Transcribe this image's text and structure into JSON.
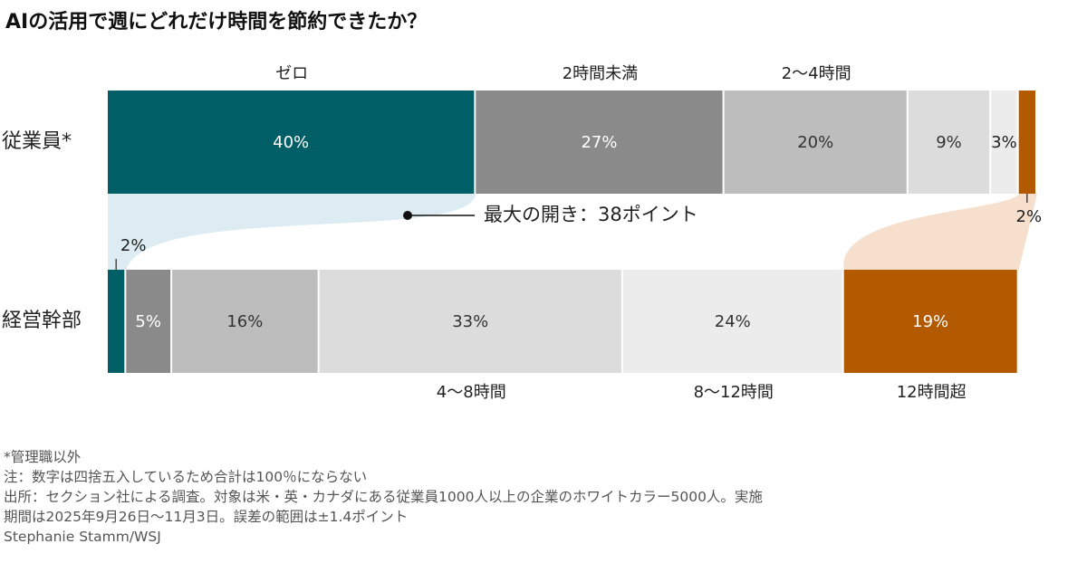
{
  "title": "AIの活用で週にどれだけ時間を節約できたか？",
  "chart_data": {
    "type": "bar",
    "stacked": true,
    "orientation": "horizontal",
    "categories": [
      "ゼロ",
      "2時間未満",
      "2～4時間",
      "4～8時間",
      "8～12時間",
      "12時間超"
    ],
    "colors": [
      "#005f66",
      "#8a8a8a",
      "#bdbdbd",
      "#dcdcdc",
      "#ececec",
      "#b35900"
    ],
    "series": [
      {
        "name": "従業員*",
        "values": [
          40,
          27,
          20,
          9,
          3,
          2
        ],
        "labels": [
          "40%",
          "27%",
          "20%",
          "9%",
          "3%",
          "2%"
        ]
      },
      {
        "name": "経営幹部",
        "values": [
          2,
          5,
          16,
          33,
          24,
          19
        ],
        "labels": [
          "2%",
          "5%",
          "16%",
          "33%",
          "24%",
          "19%"
        ]
      }
    ],
    "annotation": "最大の開き：38ポイント",
    "xlim": [
      0,
      101
    ]
  },
  "notes": {
    "asterisk": "*管理職以外",
    "note": "注：数字は四捨五入しているため合計は100％にならない",
    "source_1": "出所：セクション社による調査。対象は米・英・カナダにある従業員1000人以上の企業のホワイトカラー5000人。実施",
    "source_2": "期間は2025年9月26日～11月3日。誤差の範囲は±1.4ポイント",
    "credit": "Stephanie Stamm/WSJ"
  }
}
